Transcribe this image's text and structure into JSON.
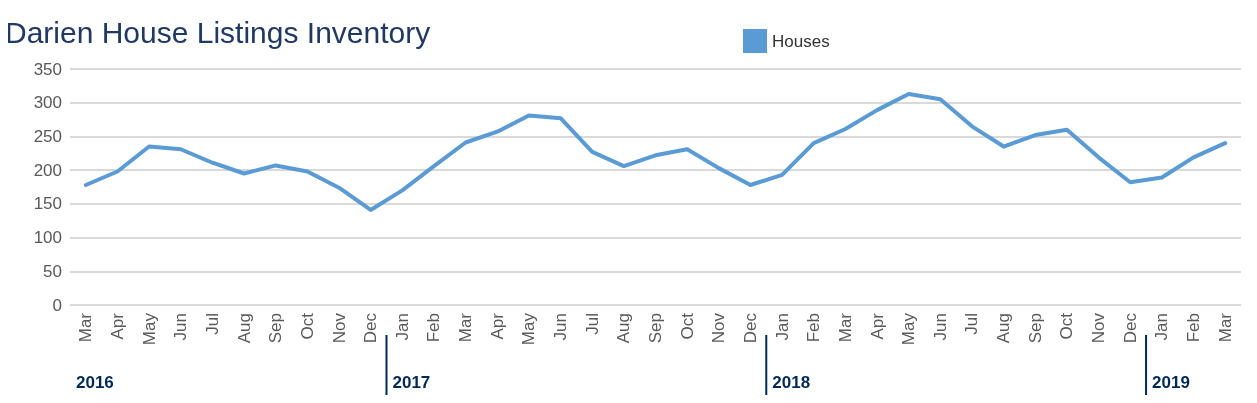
{
  "chart_data": {
    "type": "line",
    "title": "Darien House Listings Inventory",
    "categories": [
      "Mar",
      "Apr",
      "May",
      "Jun",
      "Jul",
      "Aug",
      "Sep",
      "Oct",
      "Nov",
      "Dec",
      "Jan",
      "Feb",
      "Mar",
      "Apr",
      "May",
      "Jun",
      "Jul",
      "Aug",
      "Sep",
      "Oct",
      "Nov",
      "Dec",
      "Jan",
      "Feb",
      "Mar",
      "Apr",
      "May",
      "Jun",
      "Jul",
      "Aug",
      "Sep",
      "Oct",
      "Nov",
      "Dec",
      "Jan",
      "Feb",
      "Mar"
    ],
    "series": [
      {
        "name": "Houses",
        "color": "#5b9bd5",
        "values": [
          178,
          198,
          235,
          231,
          211,
          195,
          207,
          198,
          174,
          141,
          170,
          206,
          241,
          257,
          281,
          277,
          227,
          206,
          222,
          231,
          203,
          178,
          193,
          240,
          261,
          289,
          313,
          305,
          265,
          235,
          252,
          260,
          219,
          182,
          189,
          219,
          240
        ]
      }
    ],
    "ylim": [
      0,
      350
    ],
    "yticks": [
      0,
      50,
      100,
      150,
      200,
      250,
      300,
      350
    ],
    "grid": "y",
    "legend": "top",
    "marker": "none",
    "line_style": "solid",
    "annotations": [
      "2016",
      "2017",
      "2018",
      "2019"
    ]
  }
}
